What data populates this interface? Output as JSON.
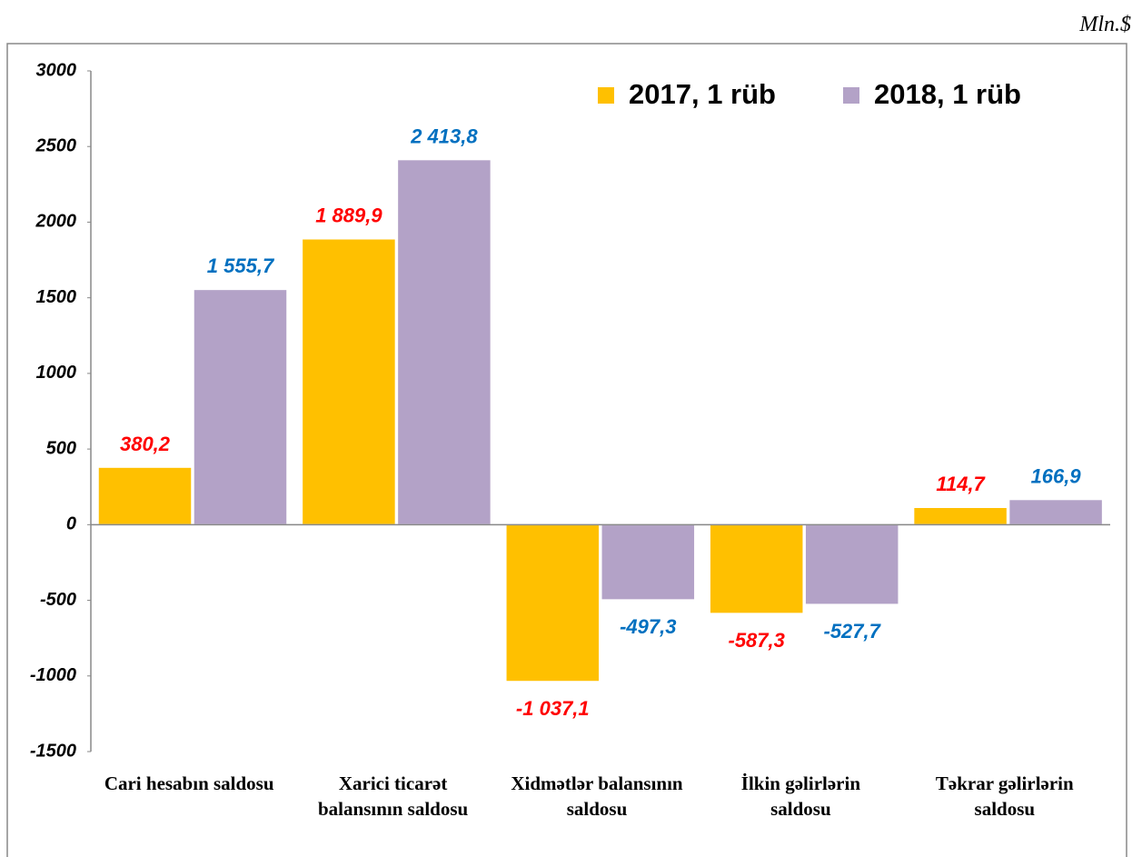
{
  "chart_data": {
    "type": "bar",
    "unit_label": "Mln.$",
    "categories": [
      "Cari hesabın saldosu",
      "Xarici ticarət balansının saldosu",
      "Xidmətlər balansının saldosu",
      "İlkin gəlirlərin saldosu",
      "Təkrar gəlirlərin saldosu"
    ],
    "series": [
      {
        "name": "2017, 1 rüb",
        "color": "#ffc000",
        "label_color": "#ff0000",
        "values": [
          380.2,
          1889.9,
          -1037.1,
          -587.3,
          114.7
        ],
        "value_labels": [
          "380,2",
          "1 889,9",
          "-1 037,1",
          "-587,3",
          "114,7"
        ]
      },
      {
        "name": "2018, 1 rüb",
        "color": "#b3a2c7",
        "label_color": "#0070c0",
        "values": [
          1555.7,
          2413.8,
          -497.3,
          -527.7,
          166.9
        ],
        "value_labels": [
          "1 555,7",
          "2 413,8",
          "-497,3",
          "-527,7",
          "166,9"
        ]
      }
    ],
    "ylim": [
      -1500,
      3000
    ],
    "yticks": [
      -1500,
      -1000,
      -500,
      0,
      500,
      1000,
      1500,
      2000,
      2500,
      3000
    ],
    "grid": false,
    "legend": "top-right"
  }
}
